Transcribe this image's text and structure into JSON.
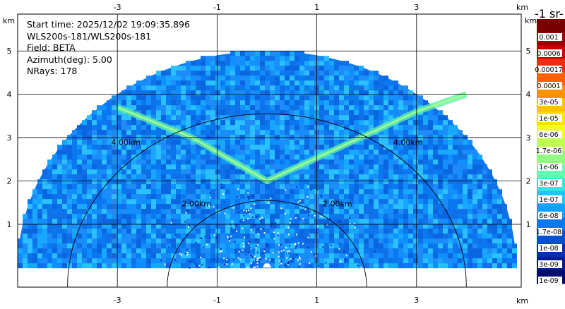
{
  "info": {
    "start_time": "Start time: 2025/12/02 19:09:35.896",
    "instrument": "WLS200s-181/WLS200s-181",
    "field": "Field: BETA",
    "azimuth": "Azimuth(deg): 5.00",
    "nrays": "NRays: 178"
  },
  "colorbar_title": "-1 sr-",
  "chart_data": {
    "type": "heatmap",
    "projection": "RHI sector (range vs height)",
    "xlabel": "km",
    "ylabel": "km",
    "x_ticks": [
      -3,
      -1,
      1,
      3
    ],
    "y_ticks": [
      1,
      2,
      3,
      4,
      5
    ],
    "x_range": [
      -5.0,
      5.1
    ],
    "y_range": [
      -0.45,
      5.85
    ],
    "max_range_km": 5.0,
    "range_ring_labels": [
      "2.00km",
      "4.00km"
    ],
    "colorbar_ticks": [
      "0.001",
      "0.0006",
      "0.00017",
      "0.0001",
      "3e-05",
      "1e-05",
      "6e-06",
      "1.7e-06",
      "1e-06",
      "3e-07",
      "1e-07",
      "6e-08",
      "1.7e-08",
      "1e-08",
      "3e-09",
      "1e-09"
    ],
    "colorbar_colors": [
      "#780000",
      "#9c0000",
      "#c80000",
      "#e83010",
      "#ff6000",
      "#ff9000",
      "#ffc000",
      "#ffe000",
      "#f0ff20",
      "#c0ff50",
      "#90ff80",
      "#60ffb0",
      "#30e8e0",
      "#18c8ff",
      "#10a0ff",
      "#0878f0",
      "#0450d0",
      "#0230b0",
      "#001a90",
      "#000a70"
    ],
    "features": [
      {
        "name": "elevated aerosol layer (V shape)",
        "level": "1e-07 to 6e-07",
        "height_km": [
          1.9,
          4.0
        ]
      },
      {
        "name": "background",
        "level": "1e-08 to 6e-08"
      },
      {
        "name": "near-field speckle",
        "level": "3e-09 to 1e-08"
      }
    ]
  }
}
